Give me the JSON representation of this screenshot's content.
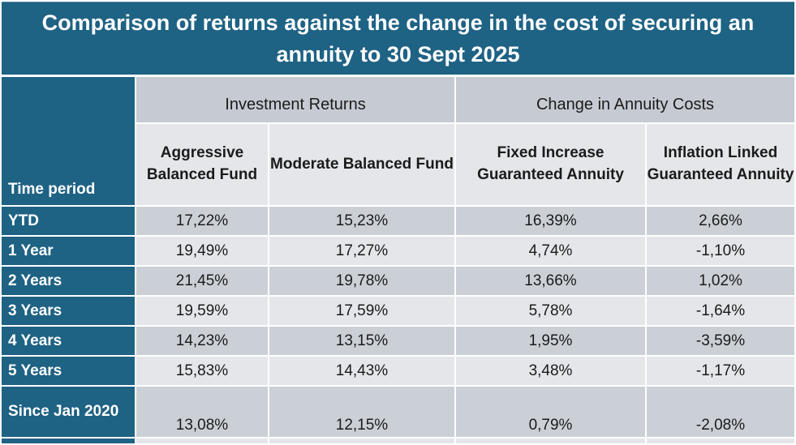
{
  "title": "Comparison of returns against the change in the cost of securing an annuity to 30 Sept 2025",
  "colors": {
    "teal": "#1E6284",
    "group_band_gray": "#C6CBD3",
    "row_dark_gray": "#CBD0D7",
    "row_light_gray": "#E4E6EA",
    "title_text": "#FFFFFF",
    "body_text": "#1B1B1B"
  },
  "chart_data": {
    "type": "table",
    "title": "Comparison of returns against the change in the cost of securing an annuity to 30 Sept 2025",
    "corner_label": "Time period",
    "column_groups": [
      {
        "label": "Investment Returns",
        "span": 2
      },
      {
        "label": "Change in Annuity Costs",
        "span": 2
      }
    ],
    "columns": [
      "Aggressive Balanced Fund",
      "Moderate Balanced Fund",
      "Fixed Increase Guaranteed Annuity",
      "Inflation Linked Guaranteed Annuity"
    ],
    "rows": [
      {
        "label": "YTD",
        "values": [
          "17,22%",
          "15,23%",
          "16,39%",
          "2,66%"
        ]
      },
      {
        "label": "1 Year",
        "values": [
          "19,49%",
          "17,27%",
          "4,74%",
          "-1,10%"
        ]
      },
      {
        "label": "2 Years",
        "values": [
          "21,45%",
          "19,78%",
          "13,66%",
          "1,02%"
        ]
      },
      {
        "label": "3 Years",
        "values": [
          "19,59%",
          "17,59%",
          "5,78%",
          "-1,64%"
        ]
      },
      {
        "label": "4 Years",
        "values": [
          "14,23%",
          "13,15%",
          "1,95%",
          "-3,59%"
        ]
      },
      {
        "label": "5 Years",
        "values": [
          "15,83%",
          "14,43%",
          "3,48%",
          "-1,17%"
        ]
      },
      {
        "label": "Since Jan 2020",
        "values": [
          "13,08%",
          "12,15%",
          "0,79%",
          "-2,08%"
        ]
      }
    ]
  }
}
